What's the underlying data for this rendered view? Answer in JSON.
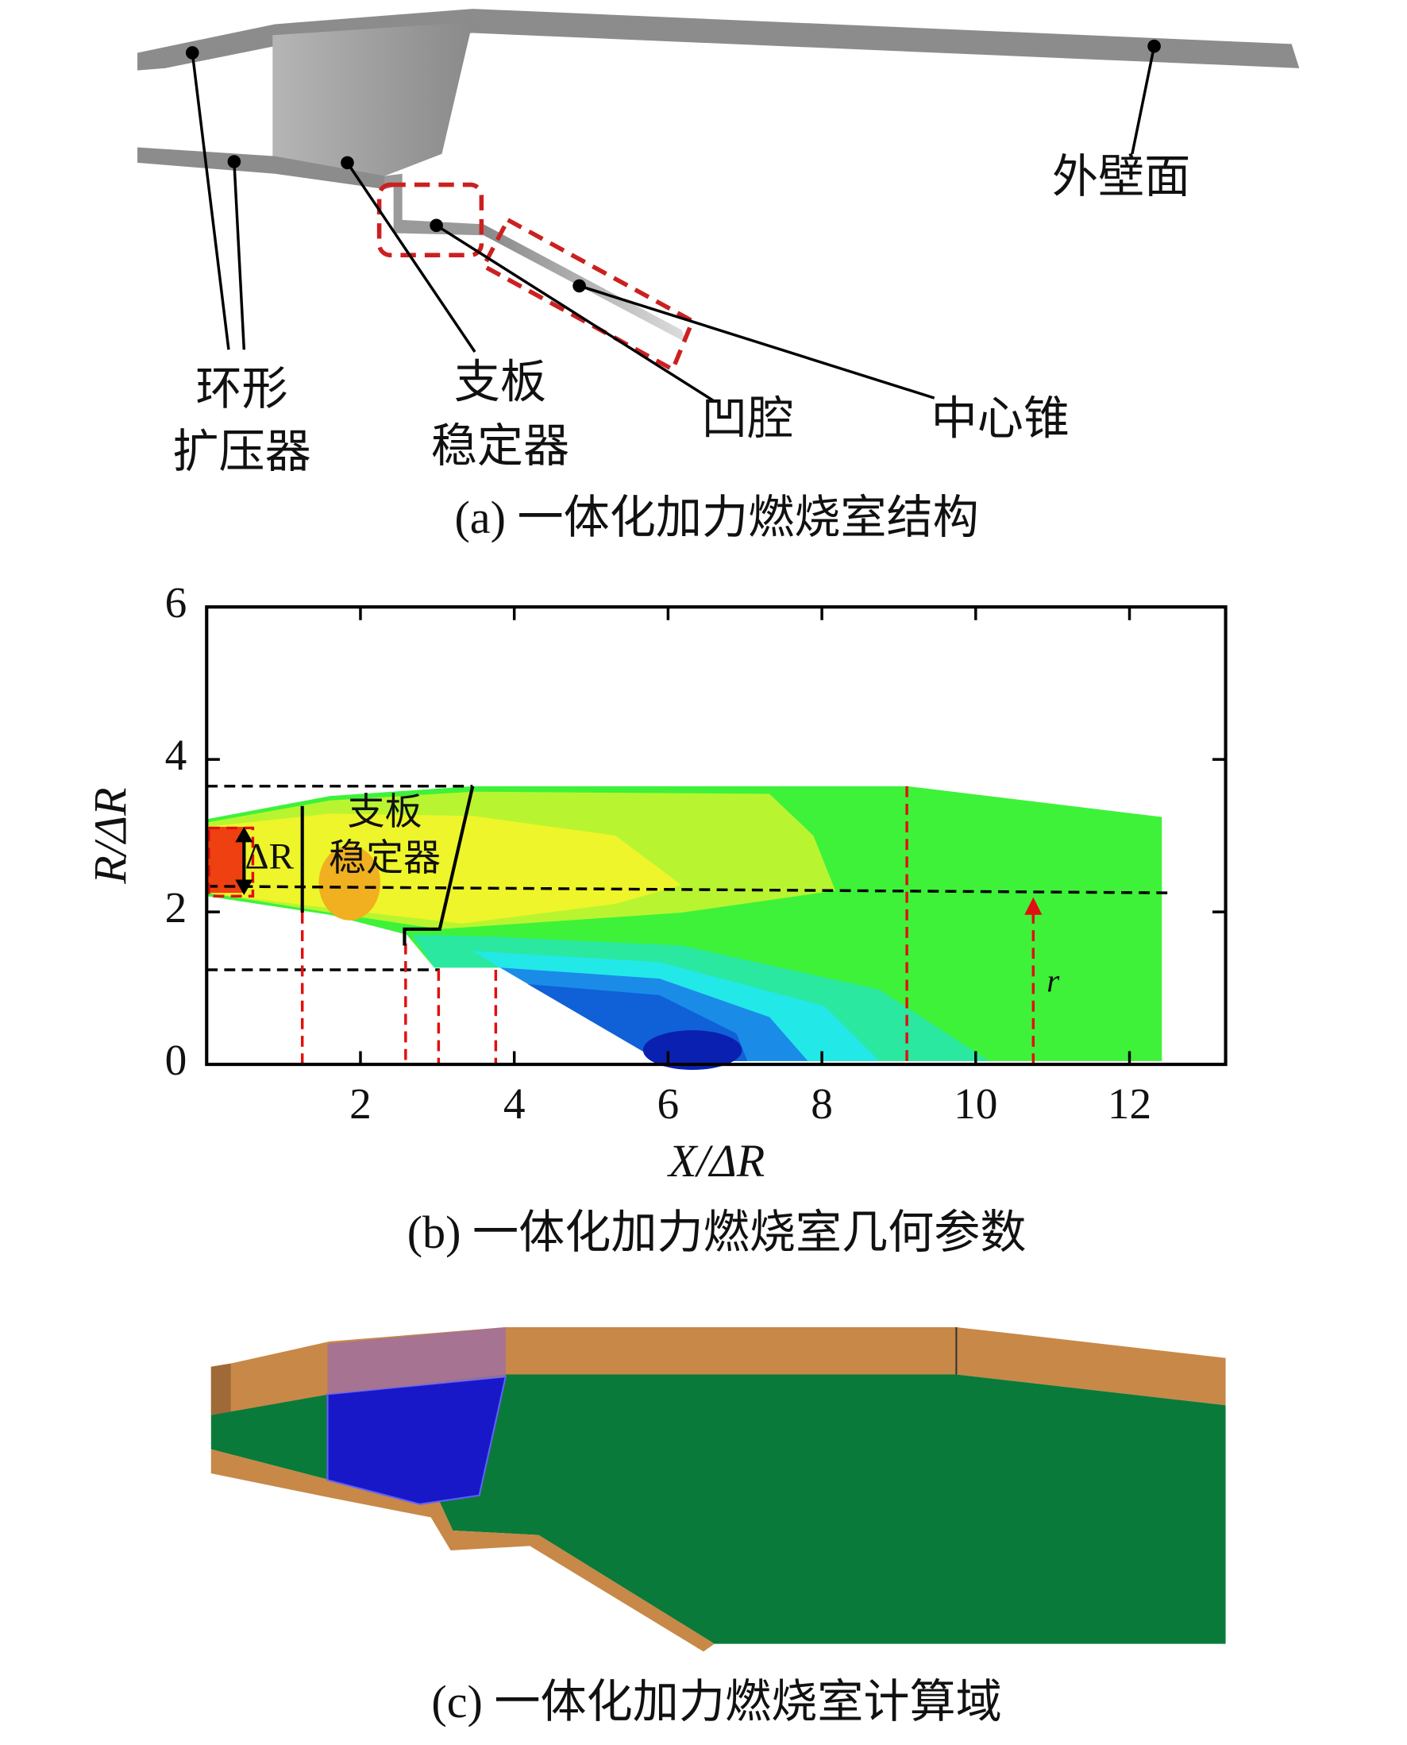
{
  "panel_a": {
    "labels": {
      "outer_wall": "外壁面",
      "diffuser": [
        "环形",
        "扩压器"
      ],
      "stabilizer": [
        "支板",
        "稳定器"
      ],
      "cavity": "凹腔",
      "center_cone": "中心锥"
    },
    "caption": "(a) 一体化加力燃烧室结构"
  },
  "panel_b": {
    "xlabel": "X/ΔR",
    "ylabel": "R/ΔR",
    "xlim": [
      0,
      13.25
    ],
    "ylim": [
      0,
      6
    ],
    "xticks": [
      2,
      4,
      6,
      8,
      10,
      12
    ],
    "yticks": [
      0,
      2,
      4,
      6
    ],
    "annotations": {
      "stabilizer": [
        "支板",
        "稳定器"
      ],
      "delta_r": "ΔR",
      "radius": "r"
    },
    "caption": "(b) 一体化加力燃烧室几何参数"
  },
  "panel_c": {
    "caption": "(c) 一体化加力燃烧室计算域"
  }
}
